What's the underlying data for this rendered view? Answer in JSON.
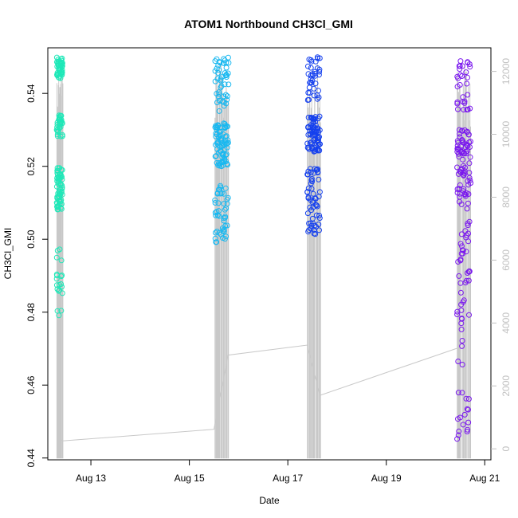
{
  "chart_data": {
    "type": "scatter",
    "title": "ATOM1 Northbound CH3Cl_GMI",
    "xlabel": "Date",
    "ylabel": "CH3Cl_GMI",
    "xlim": [
      "2016-08-12T03:00",
      "2016-08-21T03:00"
    ],
    "ylim": [
      0.4395,
      0.5525
    ],
    "x_ticks": [
      {
        "date": "2016-08-13T00:00",
        "label": "Aug 13"
      },
      {
        "date": "2016-08-15T00:00",
        "label": "Aug 15"
      },
      {
        "date": "2016-08-17T00:00",
        "label": "Aug 17"
      },
      {
        "date": "2016-08-19T00:00",
        "label": "Aug 19"
      },
      {
        "date": "2016-08-21T00:00",
        "label": "Aug 21"
      }
    ],
    "y_ticks": [
      0.44,
      0.46,
      0.48,
      0.5,
      0.52,
      0.54
    ],
    "y2_ticks": [
      0,
      2000,
      4000,
      6000,
      8000,
      10000,
      12000
    ],
    "y2lim": [
      -350,
      12750
    ],
    "y2_color": "#c0c0c0",
    "altitude_color": "#c8c8c8",
    "flights": [
      {
        "color": "#1ee8b8",
        "start": "2016-08-12T07:20",
        "end": "2016-08-12T10:10",
        "clusters": [
          {
            "y": [
              0.544,
              0.55
            ],
            "frac": 0.3
          },
          {
            "y": [
              0.528,
              0.534
            ],
            "frac": 0.2
          },
          {
            "y": [
              0.508,
              0.52
            ],
            "frac": 0.38
          },
          {
            "y": [
              0.479,
              0.498
            ],
            "frac": 0.12
          }
        ]
      },
      {
        "color": "#19b8f0",
        "start": "2016-08-15T12:30",
        "end": "2016-08-15T19:10",
        "clusters": [
          {
            "y": [
              0.535,
              0.55
            ],
            "frac": 0.28
          },
          {
            "y": [
              0.52,
              0.532
            ],
            "frac": 0.45
          },
          {
            "y": [
              0.499,
              0.515
            ],
            "frac": 0.27
          }
        ]
      },
      {
        "color": "#1540ee",
        "start": "2016-08-17T09:30",
        "end": "2016-08-17T15:50",
        "clusters": [
          {
            "y": [
              0.538,
              0.55
            ],
            "frac": 0.22
          },
          {
            "y": [
              0.524,
              0.534
            ],
            "frac": 0.45
          },
          {
            "y": [
              0.501,
              0.52
            ],
            "frac": 0.33
          }
        ]
      },
      {
        "color": "#7a18ee",
        "start": "2016-08-20T10:30",
        "end": "2016-08-20T17:10",
        "clusters": [
          {
            "y": [
              0.535,
              0.55
            ],
            "frac": 0.18
          },
          {
            "y": [
              0.51,
              0.53
            ],
            "frac": 0.45
          },
          {
            "y": [
              0.48,
              0.51
            ],
            "frac": 0.22
          },
          {
            "y": [
              0.441,
              0.48
            ],
            "frac": 0.15
          }
        ]
      }
    ],
    "altitude_path": [
      [
        "2016-08-12T07:20",
        200
      ],
      [
        "2016-08-12T09:00",
        300
      ],
      [
        "2016-08-12T10:10",
        250
      ],
      [
        "2016-08-15T12:00",
        620
      ],
      [
        "2016-08-15T18:50",
        2980
      ],
      [
        "2016-08-17T09:30",
        3300
      ],
      [
        "2016-08-17T15:40",
        1700
      ],
      [
        "2016-08-20T10:40",
        3200
      ]
    ]
  }
}
